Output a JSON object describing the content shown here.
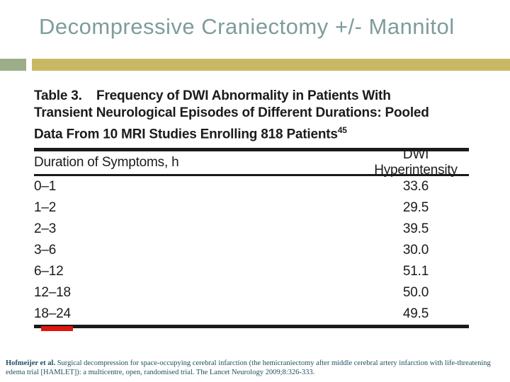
{
  "slide": {
    "title": "Decompressive Craniectomy +/- Mannitol"
  },
  "table_figure": {
    "caption_lines": [
      "Table 3.    Frequency of DWI Abnormality in Patients With",
      "Transient Neurological Episodes of Different Durations: Pooled",
      "Data From 10 MRI Studies Enrolling 818 Patients"
    ],
    "caption_ref": "45",
    "columns": [
      "Duration of Symptoms, h",
      "DWI Hyperintensity"
    ],
    "rows": [
      {
        "duration": "0–1",
        "value": "33.6"
      },
      {
        "duration": "1–2",
        "value": "29.5"
      },
      {
        "duration": "2–3",
        "value": "39.5"
      },
      {
        "duration": "3–6",
        "value": "30.0"
      },
      {
        "duration": "6–12",
        "value": "51.1"
      },
      {
        "duration": "12–18",
        "value": "50.0"
      },
      {
        "duration": "18–24",
        "value": "49.5"
      }
    ]
  },
  "chart_data": {
    "type": "table",
    "title": "Table 3. Frequency of DWI Abnormality in Patients With Transient Neurological Episodes of Different Durations: Pooled Data From 10 MRI Studies Enrolling 818 Patients (ref 45)",
    "columns": [
      "Duration of Symptoms, h",
      "DWI Hyperintensity"
    ],
    "categories": [
      "0–1",
      "1–2",
      "2–3",
      "3–6",
      "6–12",
      "12–18",
      "18–24"
    ],
    "values": [
      33.6,
      29.5,
      39.5,
      30.0,
      51.1,
      50.0,
      49.5
    ]
  },
  "citation": {
    "authors": "Hofmeijer et al.",
    "text": "Surgical decompression for space-occupying cerebral infarction (the hemicraniectomy after middle cerebral artery infarction with life-threatening edema trial [HAMLET]): a multicentre, open, randomised trial. The Lancet Neurology 2009;8:326-333."
  },
  "colors": {
    "title_text": "#7E9C9B",
    "accent_square": "#9CAE88",
    "accent_bar": "#C9B863",
    "red_mark": "#E0140E",
    "citation_text": "#1F4F61"
  }
}
